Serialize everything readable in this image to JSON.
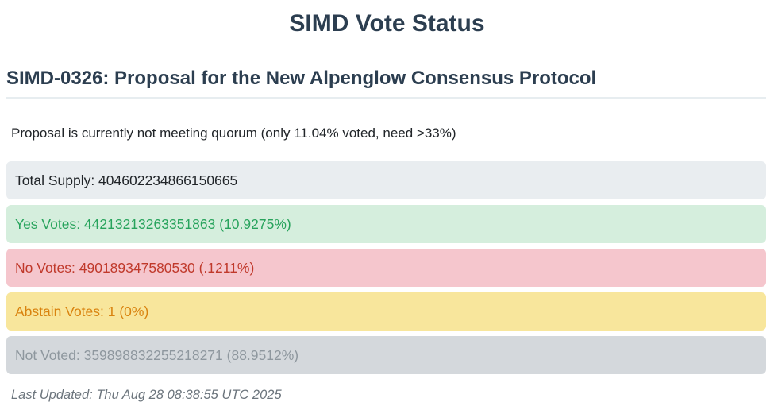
{
  "page": {
    "title": "SIMD Vote Status",
    "proposal_heading": "SIMD-0326: Proposal for the New Alpenglow Consensus Protocol",
    "quorum_status": "Proposal is currently not meeting quorum (only 11.04% voted, need >33%)",
    "last_updated": "Last Updated: Thu Aug 28 08:38:55 UTC 2025"
  },
  "vote_rows": [
    {
      "id": "total-supply",
      "text": "Total Supply: 404602234866150665",
      "label": "Total Supply",
      "value": "404602234866150665",
      "bg_color": "#e9edf0",
      "text_color": "#212529"
    },
    {
      "id": "yes-votes",
      "text": "Yes Votes: 44213213263351863 (10.9275%)",
      "label": "Yes Votes",
      "value": "44213213263351863",
      "percent": "10.9275%",
      "bg_color": "#d5eedd",
      "text_color": "#27a35c"
    },
    {
      "id": "no-votes",
      "text": "No Votes: 490189347580530 (.1211%)",
      "label": "No Votes",
      "value": "490189347580530",
      "percent": ".1211%",
      "bg_color": "#f5c6cd",
      "text_color": "#c0392b"
    },
    {
      "id": "abstain-votes",
      "text": "Abstain Votes: 1 (0%)",
      "label": "Abstain Votes",
      "value": "1",
      "percent": "0%",
      "bg_color": "#f8e69c",
      "text_color": "#d9830f"
    },
    {
      "id": "not-voted",
      "text": "Not Voted: 359898832255218271 (88.9512%)",
      "label": "Not Voted",
      "value": "359898832255218271",
      "percent": "88.9512%",
      "bg_color": "#d4d8dc",
      "text_color": "#8e979e"
    }
  ],
  "colors": {
    "heading": "#2c3e50",
    "body_text": "#212529",
    "muted": "#6c757d",
    "divider": "#e7edf0"
  }
}
